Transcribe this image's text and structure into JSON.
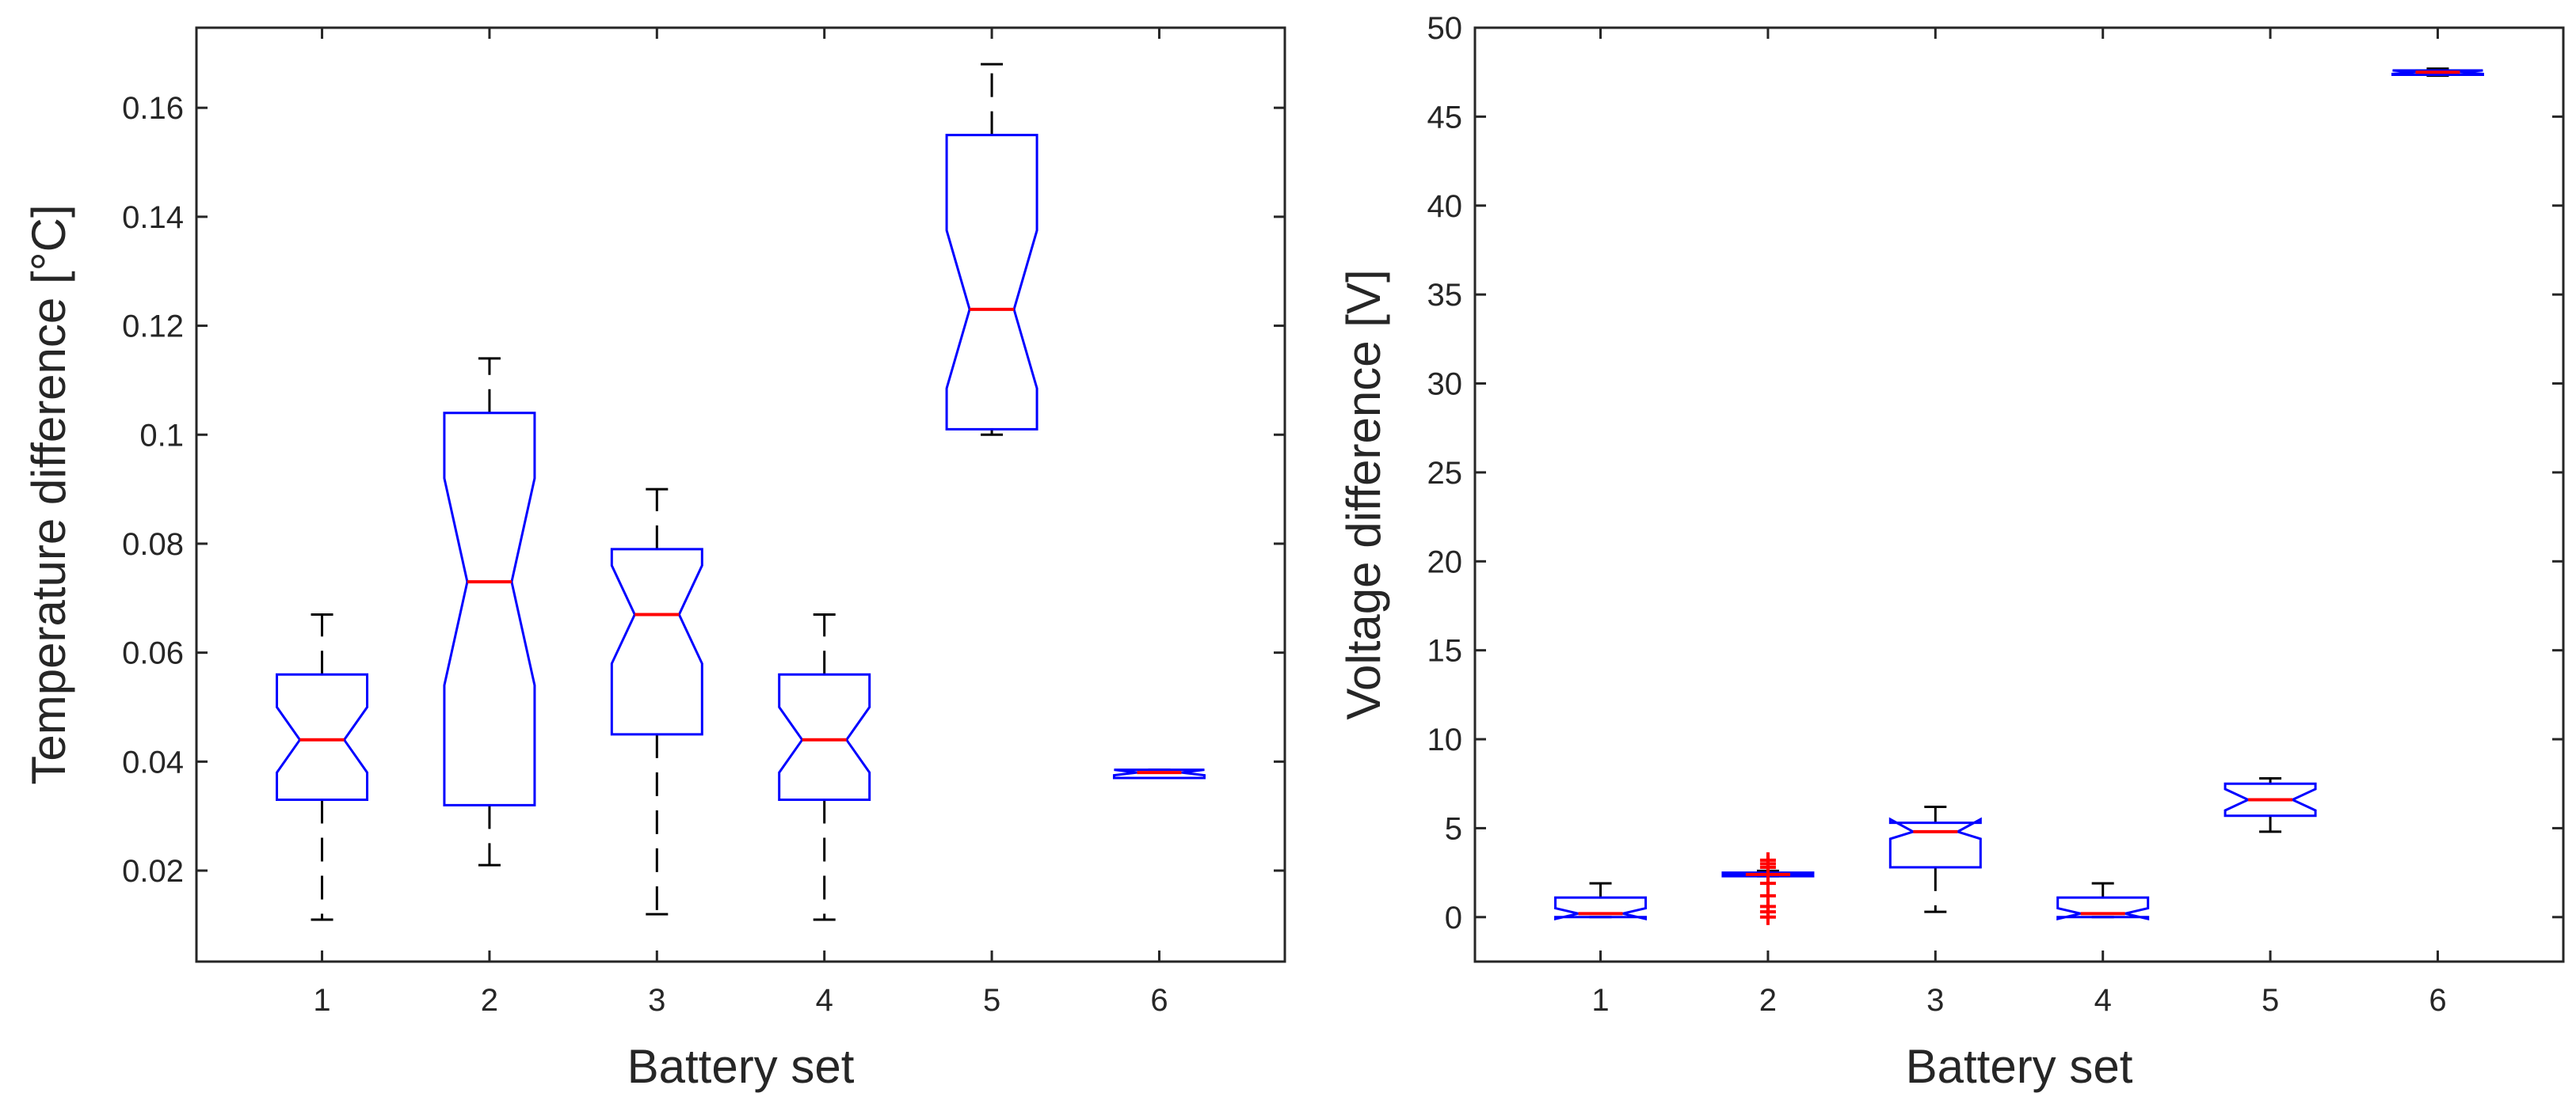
{
  "colors": {
    "box": "#0000ff",
    "median": "#ff0000",
    "whisker": "#000000",
    "outlier": "#ff0000",
    "axis": "#262626"
  },
  "chart_data": [
    {
      "type": "boxplot",
      "notched": true,
      "xlabel": "Battery set",
      "ylabel": "Temperature difference [°C]",
      "categories": [
        "1",
        "2",
        "3",
        "4",
        "5",
        "6"
      ],
      "ylim": [
        0.0033,
        0.1747
      ],
      "yticks": [
        0.02,
        0.04,
        0.06,
        0.08,
        0.1,
        0.12,
        0.14,
        0.16
      ],
      "ytick_labels": [
        "0.02",
        "0.04",
        "0.06",
        "0.08",
        "0.1",
        "0.12",
        "0.14",
        "0.16"
      ],
      "boxes": [
        {
          "whisker_low": 0.011,
          "q1": 0.033,
          "median": 0.044,
          "q3": 0.056,
          "whisker_high": 0.067,
          "notch_low": 0.038,
          "notch_high": 0.05,
          "outliers": []
        },
        {
          "whisker_low": 0.021,
          "q1": 0.032,
          "median": 0.073,
          "q3": 0.104,
          "whisker_high": 0.114,
          "notch_low": 0.054,
          "notch_high": 0.092,
          "outliers": []
        },
        {
          "whisker_low": 0.012,
          "q1": 0.045,
          "median": 0.067,
          "q3": 0.079,
          "whisker_high": 0.09,
          "notch_low": 0.058,
          "notch_high": 0.076,
          "outliers": []
        },
        {
          "whisker_low": 0.011,
          "q1": 0.033,
          "median": 0.044,
          "q3": 0.056,
          "whisker_high": 0.067,
          "notch_low": 0.038,
          "notch_high": 0.05,
          "outliers": []
        },
        {
          "whisker_low": 0.1,
          "q1": 0.101,
          "median": 0.123,
          "q3": 0.155,
          "whisker_high": 0.168,
          "notch_low": 0.1085,
          "notch_high": 0.1375,
          "outliers": []
        },
        {
          "whisker_low": 0.037,
          "q1": 0.037,
          "median": 0.038,
          "q3": 0.0385,
          "whisker_high": 0.0385,
          "notch_low": 0.0375,
          "notch_high": 0.0385,
          "outliers": []
        }
      ]
    },
    {
      "type": "boxplot",
      "notched": true,
      "xlabel": "Battery set",
      "ylabel": "Voltage difference [V]",
      "categories": [
        "1",
        "2",
        "3",
        "4",
        "5",
        "6"
      ],
      "ylim": [
        -2.5,
        50
      ],
      "yticks": [
        0,
        5,
        10,
        15,
        20,
        25,
        30,
        35,
        40,
        45,
        50
      ],
      "ytick_labels": [
        "0",
        "5",
        "10",
        "15",
        "20",
        "25",
        "30",
        "35",
        "40",
        "45",
        "50"
      ],
      "boxes": [
        {
          "whisker_low": 0.0,
          "q1": 0.0,
          "median": 0.2,
          "q3": 1.1,
          "whisker_high": 1.9,
          "notch_low": -0.1,
          "notch_high": 0.5,
          "outliers": []
        },
        {
          "whisker_low": 2.3,
          "q1": 2.3,
          "median": 2.4,
          "q3": 2.5,
          "whisker_high": 2.6,
          "notch_low": 2.35,
          "notch_high": 2.45,
          "outliers": [
            0.0,
            0.3,
            0.6,
            1.2,
            1.9,
            2.8,
            3.0,
            3.2
          ]
        },
        {
          "whisker_low": 0.3,
          "q1": 2.8,
          "median": 4.8,
          "q3": 5.3,
          "whisker_high": 6.2,
          "notch_low": 4.4,
          "notch_high": 5.5,
          "outliers": []
        },
        {
          "whisker_low": 0.0,
          "q1": 0.0,
          "median": 0.2,
          "q3": 1.1,
          "whisker_high": 1.9,
          "notch_low": -0.1,
          "notch_high": 0.5,
          "outliers": []
        },
        {
          "whisker_low": 4.8,
          "q1": 5.7,
          "median": 6.6,
          "q3": 7.5,
          "whisker_high": 7.8,
          "notch_low": 6.0,
          "notch_high": 7.2,
          "outliers": []
        },
        {
          "whisker_low": 47.3,
          "q1": 47.35,
          "median": 47.5,
          "q3": 47.6,
          "whisker_high": 47.7,
          "notch_low": 47.4,
          "notch_high": 47.6,
          "outliers": []
        }
      ]
    }
  ]
}
